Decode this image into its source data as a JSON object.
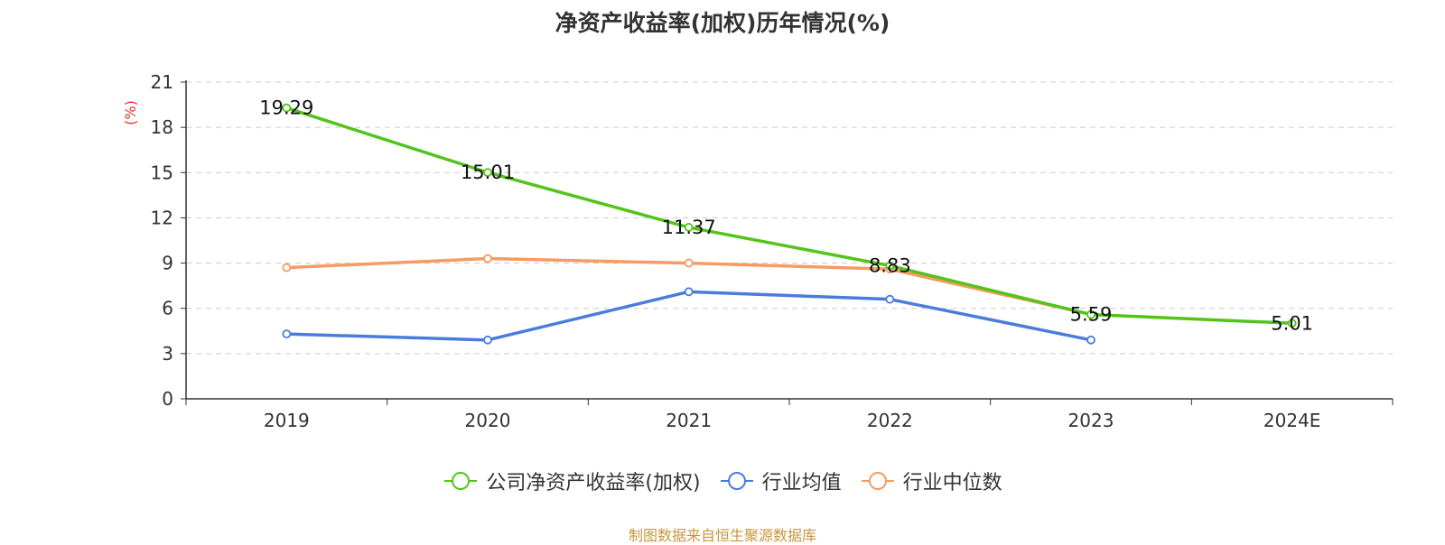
{
  "chart_data": {
    "type": "line",
    "title": "净资产收益率(加权)历年情况(%)",
    "ylabel": "(%)",
    "categories": [
      "2019",
      "2020",
      "2021",
      "2022",
      "2023",
      "2024E"
    ],
    "y_ticks": [
      "0",
      "3",
      "6",
      "9",
      "12",
      "15",
      "18",
      "21"
    ],
    "ylim": [
      0,
      21
    ],
    "grid": true,
    "legend_position": "bottom",
    "series": [
      {
        "name": "公司净资产收益率(加权)",
        "color": "#52c41a",
        "values": [
          19.29,
          15.01,
          11.37,
          8.83,
          5.59,
          5.01
        ],
        "labels": [
          "19.29",
          "15.01",
          "11.37",
          "8.83",
          "5.59",
          "5.01"
        ]
      },
      {
        "name": "行业均值",
        "color": "#4a7ddb",
        "values": [
          4.3,
          3.9,
          7.1,
          6.6,
          3.9,
          null
        ]
      },
      {
        "name": "行业中位数",
        "color": "#f79a64",
        "values": [
          8.7,
          9.3,
          9.0,
          8.6,
          5.6,
          null
        ]
      }
    ]
  },
  "source_note": "制图数据来自恒生聚源数据库"
}
